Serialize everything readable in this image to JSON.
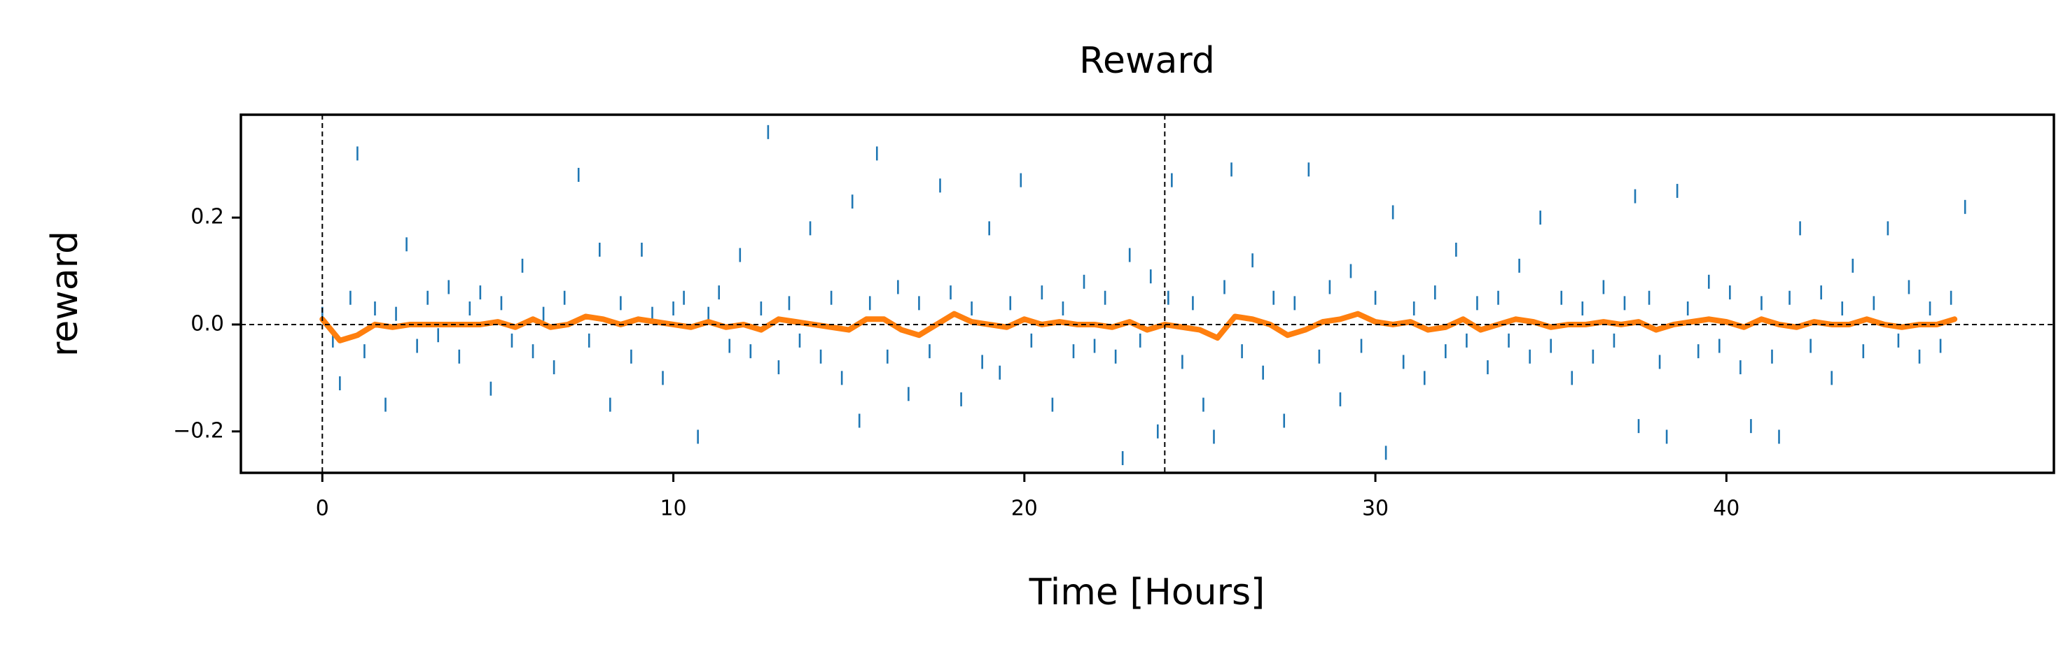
{
  "chart_data": {
    "type": "scatter",
    "title": "Reward",
    "xlabel": "Time [Hours]",
    "ylabel": "reward",
    "xlim": [
      -2.32,
      49.33
    ],
    "ylim": [
      -0.2775,
      0.3925
    ],
    "xticks": [
      0,
      10,
      20,
      30,
      40
    ],
    "yticks": [
      {
        "value": -0.2,
        "label": "−0.2"
      },
      {
        "value": 0,
        "label": "0.0"
      },
      {
        "value": 0.2,
        "label": "0.2"
      }
    ],
    "vlines": [
      0,
      24
    ],
    "hlines": [
      0
    ],
    "series": [
      {
        "type": "scatter",
        "color": "#1f77b4",
        "x": [
          0.0,
          0.3,
          0.5,
          0.8,
          1.0,
          1.2,
          1.5,
          1.8,
          2.1,
          2.4,
          2.7,
          3.0,
          3.3,
          3.6,
          3.9,
          4.2,
          4.5,
          4.8,
          5.1,
          5.4,
          5.7,
          6.0,
          6.3,
          6.6,
          6.9,
          7.3,
          7.6,
          7.9,
          8.2,
          8.5,
          8.8,
          9.1,
          9.4,
          9.7,
          10.0,
          10.3,
          10.7,
          11.0,
          11.3,
          11.6,
          11.9,
          12.2,
          12.5,
          12.7,
          13.0,
          13.3,
          13.6,
          13.9,
          14.2,
          14.5,
          14.8,
          15.1,
          15.3,
          15.6,
          15.8,
          16.1,
          16.4,
          16.7,
          17.0,
          17.3,
          17.6,
          17.9,
          18.2,
          18.5,
          18.8,
          19.0,
          19.3,
          19.6,
          19.9,
          20.2,
          20.5,
          20.8,
          21.1,
          21.4,
          21.7,
          22.0,
          22.3,
          22.6,
          22.8,
          23.0,
          23.3,
          23.6,
          23.8,
          24.1,
          24.2,
          24.5,
          24.8,
          25.1,
          25.4,
          25.7,
          25.9,
          26.2,
          26.5,
          26.8,
          27.1,
          27.4,
          27.7,
          28.1,
          28.4,
          28.7,
          29.0,
          29.3,
          29.6,
          30.0,
          30.3,
          30.5,
          30.8,
          31.1,
          31.4,
          31.7,
          32.0,
          32.3,
          32.6,
          32.9,
          33.2,
          33.5,
          33.8,
          34.1,
          34.4,
          34.7,
          35.0,
          35.3,
          35.6,
          35.9,
          36.2,
          36.5,
          36.8,
          37.1,
          37.4,
          37.5,
          37.8,
          38.1,
          38.3,
          38.6,
          38.9,
          39.2,
          39.5,
          39.8,
          40.1,
          40.4,
          40.7,
          41.0,
          41.3,
          41.5,
          41.8,
          42.1,
          42.4,
          42.7,
          43.0,
          43.3,
          43.6,
          43.9,
          44.2,
          44.6,
          44.9,
          45.2,
          45.5,
          45.8,
          46.1,
          46.4,
          46.8
        ],
        "values": [
          0.02,
          -0.03,
          -0.11,
          0.05,
          0.32,
          -0.05,
          0.03,
          -0.15,
          0.02,
          0.15,
          -0.04,
          0.05,
          -0.02,
          0.07,
          -0.06,
          0.03,
          0.06,
          -0.12,
          0.04,
          -0.03,
          0.11,
          -0.05,
          0.02,
          -0.08,
          0.05,
          0.28,
          -0.03,
          0.14,
          -0.15,
          0.04,
          -0.06,
          0.14,
          0.02,
          -0.1,
          0.03,
          0.05,
          -0.21,
          0.02,
          0.06,
          -0.04,
          0.13,
          -0.05,
          0.03,
          0.36,
          -0.08,
          0.04,
          -0.03,
          0.18,
          -0.06,
          0.05,
          -0.1,
          0.23,
          -0.18,
          0.04,
          0.32,
          -0.06,
          0.07,
          -0.13,
          0.04,
          -0.05,
          0.26,
          0.06,
          -0.14,
          0.03,
          -0.07,
          0.18,
          -0.09,
          0.04,
          0.27,
          -0.03,
          0.06,
          -0.15,
          0.03,
          -0.05,
          0.08,
          -0.04,
          0.05,
          -0.06,
          -0.25,
          0.13,
          -0.03,
          0.09,
          -0.2,
          0.05,
          0.27,
          -0.07,
          0.04,
          -0.15,
          -0.21,
          0.07,
          0.29,
          -0.05,
          0.12,
          -0.09,
          0.05,
          -0.18,
          0.04,
          0.29,
          -0.06,
          0.07,
          -0.14,
          0.1,
          -0.04,
          0.05,
          -0.24,
          0.21,
          -0.07,
          0.03,
          -0.1,
          0.06,
          -0.05,
          0.14,
          -0.03,
          0.04,
          -0.08,
          0.05,
          -0.03,
          0.11,
          -0.06,
          0.2,
          -0.04,
          0.05,
          -0.1,
          0.03,
          -0.06,
          0.07,
          -0.03,
          0.04,
          0.24,
          -0.19,
          0.05,
          -0.07,
          -0.21,
          0.25,
          0.03,
          -0.05,
          0.08,
          -0.04,
          0.06,
          -0.08,
          -0.19,
          0.04,
          -0.06,
          -0.21,
          0.05,
          0.18,
          -0.04,
          0.06,
          -0.1,
          0.03,
          0.11,
          -0.05,
          0.04,
          0.18,
          -0.03,
          0.07,
          -0.06,
          0.03,
          -0.04,
          0.05,
          0.22
        ]
      },
      {
        "type": "line",
        "color": "#ff7f0e",
        "x": [
          0.0,
          0.5,
          1.0,
          1.5,
          2.0,
          2.5,
          3.0,
          3.5,
          4.0,
          4.5,
          5.0,
          5.5,
          6.0,
          6.5,
          7.0,
          7.5,
          8.0,
          8.5,
          9.0,
          9.5,
          10.0,
          10.5,
          11.0,
          11.5,
          12.0,
          12.5,
          13.0,
          13.5,
          14.0,
          14.5,
          15.0,
          15.5,
          16.0,
          16.5,
          17.0,
          17.5,
          18.0,
          18.5,
          19.0,
          19.5,
          20.0,
          20.5,
          21.0,
          21.5,
          22.0,
          22.5,
          23.0,
          23.5,
          24.0,
          24.5,
          25.0,
          25.5,
          26.0,
          26.5,
          27.0,
          27.5,
          28.0,
          28.5,
          29.0,
          29.5,
          30.0,
          30.5,
          31.0,
          31.5,
          32.0,
          32.5,
          33.0,
          33.5,
          34.0,
          34.5,
          35.0,
          35.5,
          36.0,
          36.5,
          37.0,
          37.5,
          38.0,
          38.5,
          39.0,
          39.5,
          40.0,
          40.5,
          41.0,
          41.5,
          42.0,
          42.5,
          43.0,
          43.5,
          44.0,
          44.5,
          45.0,
          45.5,
          46.0,
          46.5
        ],
        "values": [
          0.01,
          -0.03,
          -0.02,
          0.0,
          -0.005,
          0.0,
          0.0,
          0.0,
          0.0,
          0.0,
          0.005,
          -0.005,
          0.01,
          -0.005,
          0.0,
          0.015,
          0.01,
          0.0,
          0.01,
          0.005,
          0.0,
          -0.005,
          0.005,
          -0.005,
          0.0,
          -0.01,
          0.01,
          0.005,
          0.0,
          -0.005,
          -0.01,
          0.01,
          0.01,
          -0.01,
          -0.02,
          0.0,
          0.02,
          0.005,
          0.0,
          -0.005,
          0.01,
          0.0,
          0.005,
          0.0,
          0.0,
          -0.005,
          0.005,
          -0.01,
          0.0,
          -0.005,
          -0.01,
          -0.025,
          0.015,
          0.01,
          0.0,
          -0.02,
          -0.01,
          0.005,
          0.01,
          0.02,
          0.005,
          0.0,
          0.005,
          -0.01,
          -0.005,
          0.01,
          -0.01,
          0.0,
          0.01,
          0.005,
          -0.005,
          0.0,
          0.0,
          0.005,
          0.0,
          0.005,
          -0.01,
          0.0,
          0.005,
          0.01,
          0.005,
          -0.005,
          0.01,
          0.0,
          -0.005,
          0.005,
          0.0,
          0.0,
          0.01,
          0.0,
          -0.005,
          0.0,
          0.0,
          0.01
        ]
      }
    ]
  }
}
